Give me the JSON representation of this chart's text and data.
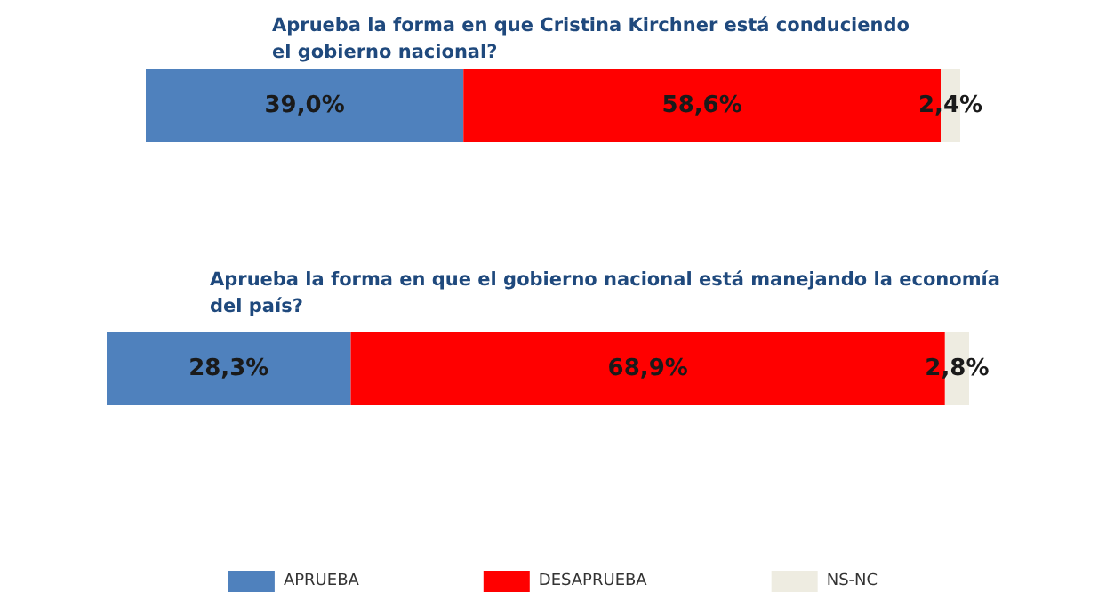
{
  "chart_data": [
    {
      "type": "bar",
      "orientation": "horizontal",
      "stacked": true,
      "title": "Aprueba la forma en que Cristina Kirchner está conduciendo el gobierno nacional?",
      "categories": [
        null
      ],
      "xlim": [
        0,
        100
      ],
      "tick_labels": false,
      "legend": false,
      "series": [
        {
          "color": "#4f81bd",
          "values": [
            39.0
          ],
          "value_labels": [
            "39,0%"
          ]
        },
        {
          "color": "#ff0000",
          "values": [
            58.6
          ],
          "value_labels": [
            "58,6%"
          ]
        },
        {
          "color": "#eeece1",
          "values": [
            2.4
          ],
          "value_labels": [
            "2,4%"
          ]
        }
      ]
    },
    {
      "type": "bar",
      "orientation": "horizontal",
      "stacked": true,
      "title": "Aprueba la forma en que el gobierno nacional está manejando la economía del país?",
      "categories": [
        null
      ],
      "xlim": [
        0,
        100
      ],
      "tick_labels": false,
      "legend": "bottom",
      "series": [
        {
          "name": "APRUEBA",
          "color": "#4f81bd",
          "values": [
            28.3
          ],
          "value_labels": [
            "28,3%"
          ]
        },
        {
          "name": "DESAPRUEBA",
          "color": "#ff0000",
          "values": [
            68.9
          ],
          "value_labels": [
            "68,9%"
          ]
        },
        {
          "name": "NS-NC",
          "color": "#eeece1",
          "values": [
            2.8
          ],
          "value_labels": [
            "2,8%"
          ]
        }
      ]
    }
  ]
}
